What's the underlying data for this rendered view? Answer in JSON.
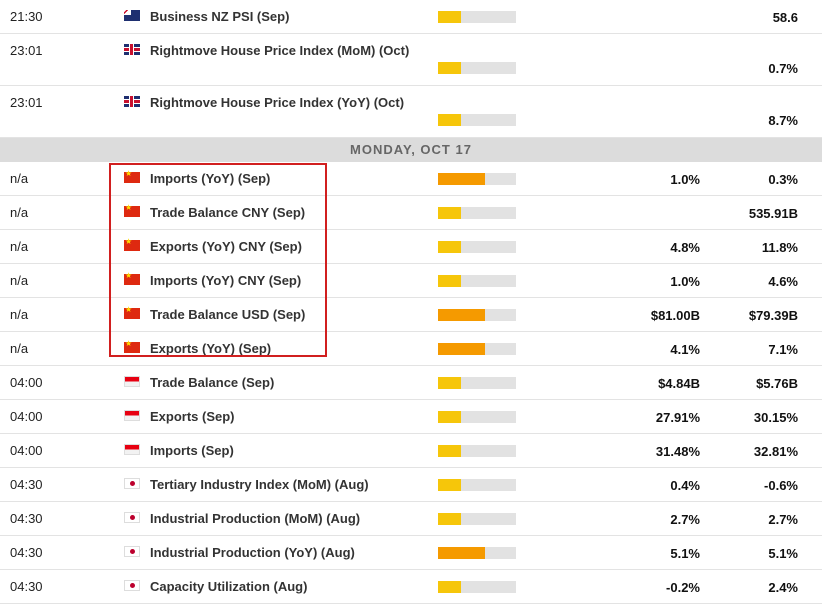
{
  "rows_before": [
    {
      "time": "21:30",
      "country": "nz",
      "event": "Business NZ PSI (Sep)",
      "impact": "low",
      "forecast": "",
      "previous": "58.6",
      "tall": false
    },
    {
      "time": "23:01",
      "country": "uk",
      "event": "Rightmove House Price Index (MoM) (Oct)",
      "impact": "low",
      "forecast": "",
      "previous": "0.7%",
      "tall": true
    },
    {
      "time": "23:01",
      "country": "uk",
      "event": "Rightmove House Price Index (YoY) (Oct)",
      "impact": "low",
      "forecast": "",
      "previous": "8.7%",
      "tall": true
    }
  ],
  "day_header": "MONDAY, OCT 17",
  "rows_after": [
    {
      "time": "n/a",
      "country": "cn",
      "event": "Imports (YoY) (Sep)",
      "impact": "high",
      "forecast": "1.0%",
      "previous": "0.3%"
    },
    {
      "time": "n/a",
      "country": "cn",
      "event": "Trade Balance CNY (Sep)",
      "impact": "low",
      "forecast": "",
      "previous": "535.91B"
    },
    {
      "time": "n/a",
      "country": "cn",
      "event": "Exports (YoY) CNY (Sep)",
      "impact": "low",
      "forecast": "4.8%",
      "previous": "11.8%"
    },
    {
      "time": "n/a",
      "country": "cn",
      "event": "Imports (YoY) CNY (Sep)",
      "impact": "low",
      "forecast": "1.0%",
      "previous": "4.6%"
    },
    {
      "time": "n/a",
      "country": "cn",
      "event": "Trade Balance USD (Sep)",
      "impact": "high",
      "forecast": "$81.00B",
      "previous": "$79.39B"
    },
    {
      "time": "n/a",
      "country": "cn",
      "event": "Exports (YoY) (Sep)",
      "impact": "high",
      "forecast": "4.1%",
      "previous": "7.1%"
    },
    {
      "time": "04:00",
      "country": "id",
      "event": "Trade Balance (Sep)",
      "impact": "low",
      "forecast": "$4.84B",
      "previous": "$5.76B"
    },
    {
      "time": "04:00",
      "country": "id",
      "event": "Exports (Sep)",
      "impact": "low",
      "forecast": "27.91%",
      "previous": "30.15%"
    },
    {
      "time": "04:00",
      "country": "id",
      "event": "Imports (Sep)",
      "impact": "low",
      "forecast": "31.48%",
      "previous": "32.81%"
    },
    {
      "time": "04:30",
      "country": "jp",
      "event": "Tertiary Industry Index (MoM) (Aug)",
      "impact": "low",
      "forecast": "0.4%",
      "previous": "-0.6%"
    },
    {
      "time": "04:30",
      "country": "jp",
      "event": "Industrial Production (MoM) (Aug)",
      "impact": "low",
      "forecast": "2.7%",
      "previous": "2.7%"
    },
    {
      "time": "04:30",
      "country": "jp",
      "event": "Industrial Production (YoY) (Aug)",
      "impact": "high",
      "forecast": "5.1%",
      "previous": "5.1%"
    },
    {
      "time": "04:30",
      "country": "jp",
      "event": "Capacity Utilization (Aug)",
      "impact": "low",
      "forecast": "-0.2%",
      "previous": "2.4%"
    }
  ],
  "impact_levels": {
    "low": 0.3,
    "high": 0.6
  },
  "colors": {
    "low": "#f6c60a",
    "high": "#f59a00",
    "highlight": "#d11f1f"
  }
}
